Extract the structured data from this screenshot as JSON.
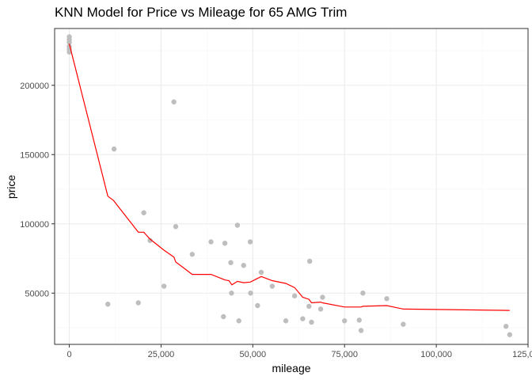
{
  "chart_data": {
    "type": "scatter",
    "title": "KNN Model for Price vs Mileage for 65 AMG Trim",
    "xlabel": "mileage",
    "ylabel": "price",
    "xlim": [
      -4000,
      125000
    ],
    "ylim": [
      13000,
      241000
    ],
    "x_ticks": [
      0,
      25000,
      50000,
      75000,
      100000,
      125000
    ],
    "x_tick_labels": [
      "0",
      "25,000",
      "50,000",
      "75,000",
      "100,000",
      "125,000"
    ],
    "y_ticks": [
      50000,
      100000,
      150000,
      200000
    ],
    "y_tick_labels": [
      "50000",
      "100000",
      "150000",
      "200000"
    ],
    "grid": true,
    "legend": "none",
    "colors": {
      "points": "#bebebe",
      "fit_line": "#ff0000",
      "grid_major": "#ebebeb",
      "grid_minor": "#f5f5f5",
      "panel_border": "#333333"
    },
    "series": [
      {
        "kind": "points",
        "x": [
          0,
          0,
          0,
          0,
          0,
          0,
          10500,
          12200,
          18800,
          20300,
          22000,
          25800,
          28500,
          29000,
          33500,
          38600,
          42000,
          42400,
          44000,
          44200,
          45800,
          46200,
          47500,
          49300,
          49400,
          51300,
          52300,
          55300,
          59000,
          61400,
          63600,
          65300,
          65500,
          66000,
          68500,
          69000,
          75000,
          79000,
          79500,
          80000,
          86500,
          91000,
          119000,
          120000
        ],
        "y": [
          235000,
          233000,
          231000,
          228000,
          226000,
          224000,
          42000,
          154000,
          43000,
          108000,
          88000,
          55000,
          188000,
          98000,
          78000,
          87000,
          33000,
          86000,
          72000,
          50000,
          99000,
          30000,
          70000,
          87000,
          50000,
          41000,
          65000,
          55000,
          30000,
          48000,
          31500,
          40500,
          73000,
          29000,
          38500,
          47000,
          30000,
          30500,
          23000,
          50000,
          46000,
          27500,
          26000,
          20000
        ]
      },
      {
        "kind": "line",
        "x": [
          0,
          10500,
          12000,
          18800,
          20300,
          22000,
          25800,
          28500,
          29000,
          33500,
          38600,
          42000,
          42400,
          43500,
          44300,
          45800,
          47500,
          49300,
          52300,
          55300,
          59000,
          61400,
          63600,
          65300,
          66000,
          68500,
          69000,
          75000,
          79500,
          80000,
          86500,
          91000,
          120000
        ],
        "y": [
          230000,
          120000,
          117000,
          94000,
          94000,
          89000,
          81000,
          76000,
          72500,
          63500,
          63500,
          60000,
          59500,
          59000,
          56000,
          58500,
          57500,
          58000,
          62000,
          59000,
          57000,
          54000,
          47000,
          45500,
          43000,
          43500,
          43000,
          40000,
          40000,
          40500,
          41000,
          38500,
          37500
        ]
      }
    ]
  }
}
